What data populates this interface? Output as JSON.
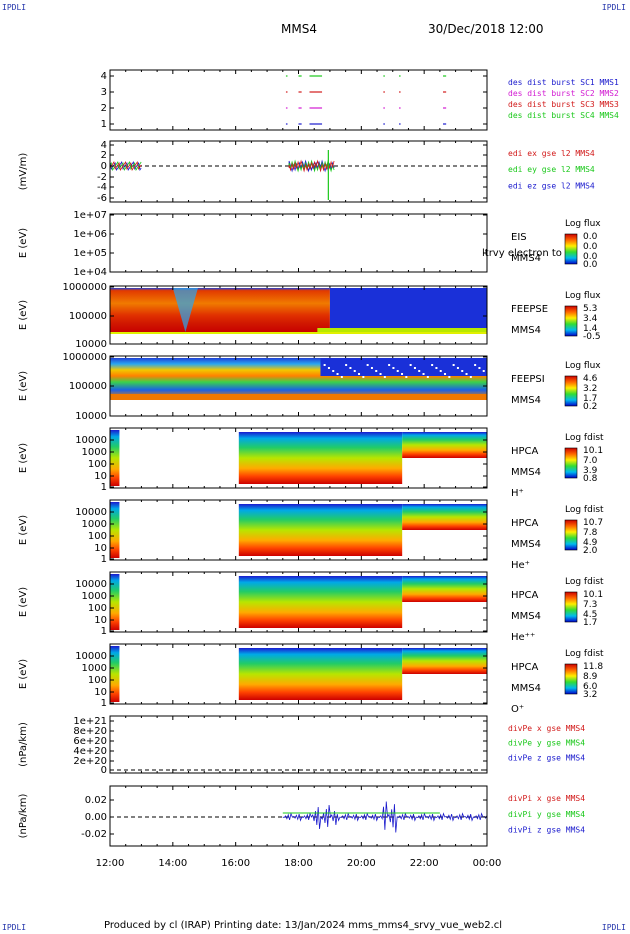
{
  "corner_left_top": "IPDLI",
  "corner_right_top": "IPDLI",
  "corner_left_bottom": "IPDLI",
  "corner_right_bottom": "IPDLI",
  "title": "MMS4",
  "date": "30/Dec/2018 12:00",
  "footer": "Produced by cl (IRAP)    Printing date: 13/Jan/2024    mms_mms4_srvy_vue_web2.cl",
  "chart_data": {
    "type": "heatmap",
    "x_ticks": [
      "12:00",
      "14:00",
      "16:00",
      "18:00",
      "20:00",
      "22:00",
      "00:00"
    ],
    "panels": [
      {
        "id": "burst",
        "type": "scatter",
        "yticks": [
          "1",
          "2",
          "3",
          "4"
        ],
        "legend": [
          {
            "text": "des dist burst SC1 MMS1",
            "color": "#1a1acd"
          },
          {
            "text": "des dist burst SC2 MMS2",
            "color": "#d21ad2"
          },
          {
            "text": "des dist burst SC3 MMS3",
            "color": "#d21a1a"
          },
          {
            "text": "des dist burst SC4 MMS4",
            "color": "#1ac81a"
          }
        ]
      },
      {
        "id": "edi",
        "type": "line",
        "ylabel": "(mV/m)",
        "yticks": [
          "4",
          "2",
          "0",
          "-2",
          "-4",
          "-6"
        ],
        "legend": [
          {
            "text": "edi ex gse l2 MMS4",
            "color": "#d21a1a"
          },
          {
            "text": "edi ey gse l2 MMS4",
            "color": "#1ac81a"
          },
          {
            "text": "edi ez gse l2 MMS4",
            "color": "#1a1acd"
          }
        ]
      },
      {
        "id": "eis",
        "type": "heatmap",
        "ylabel": "E (eV)",
        "yticks": [
          "1e+07",
          "1e+06",
          "1e+05",
          "1e+04"
        ],
        "labels": [
          "EIS",
          "MMS4"
        ],
        "overlay": "ltrvy electron to",
        "cbar": {
          "title": "Log flux",
          "values": [
            "0.0",
            "0.0",
            "0.0",
            "0.0"
          ]
        }
      },
      {
        "id": "feepse",
        "type": "heatmap",
        "ylabel": "E (eV)",
        "yticks": [
          "1000000",
          "100000",
          "10000"
        ],
        "labels": [
          "FEEPSE",
          "MMS4"
        ],
        "cbar": {
          "title": "Log flux",
          "values": [
            "5.3",
            "3.4",
            "1.4",
            "-0.5"
          ]
        }
      },
      {
        "id": "feepsi",
        "type": "heatmap",
        "ylabel": "E (eV)",
        "yticks": [
          "1000000",
          "100000",
          "10000"
        ],
        "labels": [
          "FEEPSI",
          "MMS4"
        ],
        "cbar": {
          "title": "Log flux",
          "values": [
            "4.6",
            "3.2",
            "1.7",
            "0.2"
          ]
        }
      },
      {
        "id": "hpca_h",
        "type": "heatmap",
        "ylabel": "E (eV)",
        "yticks": [
          "10000",
          "1000",
          "100",
          "10",
          "1"
        ],
        "labels": [
          "HPCA",
          "MMS4",
          "H⁺"
        ],
        "cbar": {
          "title": "Log fdist",
          "values": [
            "10.1",
            "7.0",
            "3.9",
            "0.8"
          ]
        }
      },
      {
        "id": "hpca_he",
        "type": "heatmap",
        "ylabel": "E (eV)",
        "yticks": [
          "10000",
          "1000",
          "100",
          "10",
          "1"
        ],
        "labels": [
          "HPCA",
          "MMS4",
          "He⁺"
        ],
        "cbar": {
          "title": "Log fdist",
          "values": [
            "10.7",
            "7.8",
            "4.9",
            "2.0"
          ]
        }
      },
      {
        "id": "hpca_hepp",
        "type": "heatmap",
        "ylabel": "E (eV)",
        "yticks": [
          "10000",
          "1000",
          "100",
          "10",
          "1"
        ],
        "labels": [
          "HPCA",
          "MMS4",
          "He⁺⁺"
        ],
        "cbar": {
          "title": "Log fdist",
          "values": [
            "10.1",
            "7.3",
            "4.5",
            "1.7"
          ]
        }
      },
      {
        "id": "hpca_o",
        "type": "heatmap",
        "ylabel": "E (eV)",
        "yticks": [
          "10000",
          "1000",
          "100",
          "10",
          "1"
        ],
        "labels": [
          "HPCA",
          "MMS4",
          "O⁺"
        ],
        "cbar": {
          "title": "Log fdist",
          "values": [
            "11.8",
            "8.9",
            "6.0",
            "3.2"
          ]
        }
      },
      {
        "id": "divpe",
        "type": "line",
        "ylabel": "(nPa/km)",
        "yticks": [
          "1e+21",
          "8e+20",
          "6e+20",
          "4e+20",
          "2e+20",
          "0"
        ],
        "legend": [
          {
            "text": "divPe x gse MMS4",
            "color": "#d21a1a"
          },
          {
            "text": "divPe y gse MMS4",
            "color": "#1ac81a"
          },
          {
            "text": "divPe z gse MMS4",
            "color": "#1a1acd"
          }
        ]
      },
      {
        "id": "divpi",
        "type": "line",
        "ylabel": "(nPa/km)",
        "yticks": [
          "0.02",
          "0.00",
          "-0.02"
        ],
        "legend": [
          {
            "text": "divPi x gse MMS4",
            "color": "#d21a1a"
          },
          {
            "text": "divPi y gse MMS4",
            "color": "#1ac81a"
          },
          {
            "text": "divPi z gse MMS4",
            "color": "#1a1acd"
          }
        ]
      }
    ]
  }
}
